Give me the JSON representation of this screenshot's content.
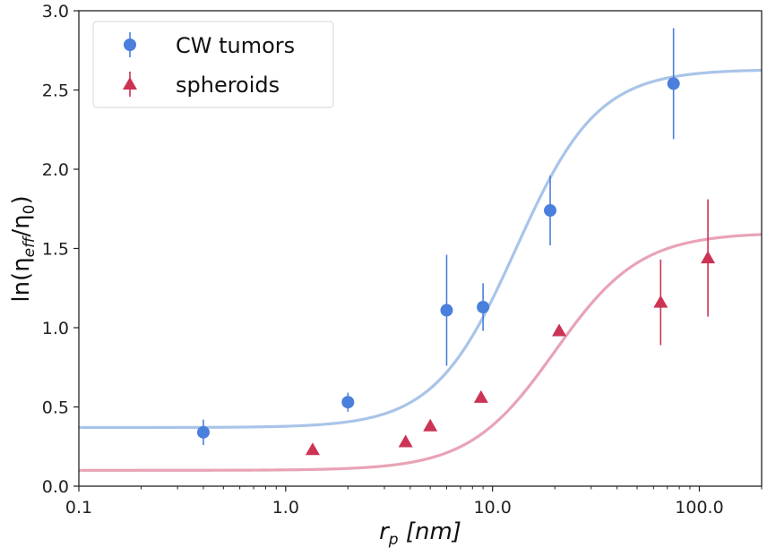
{
  "chart_data": {
    "type": "scatter",
    "x_scale": "log",
    "xlim": [
      0.1,
      200
    ],
    "ylim": [
      0.0,
      3.0
    ],
    "x_ticks": [
      0.1,
      1.0,
      10.0,
      100.0
    ],
    "x_tick_labels": [
      "0.1",
      "1.0",
      "10.0",
      "100.0"
    ],
    "y_ticks": [
      0.0,
      0.5,
      1.0,
      1.5,
      2.0,
      2.5,
      3.0
    ],
    "y_tick_labels": [
      "0.0",
      "0.5",
      "1.0",
      "1.5",
      "2.0",
      "2.5",
      "3.0"
    ],
    "xlabel": {
      "main": "r",
      "sub": "p",
      "rest": " [nm]"
    },
    "ylabel": {
      "part1": "ln(η",
      "sub": "eff",
      "part2": "/η",
      "sub2": "0",
      "part3": ")"
    },
    "grid": false,
    "legend_position": "top-left",
    "series": [
      {
        "name": "CW tumors",
        "marker": "circle",
        "color": "#4a7fdc",
        "fit_color": "#a9c4e8",
        "points": [
          {
            "x": 0.4,
            "y": 0.34,
            "err": 0.08
          },
          {
            "x": 2.0,
            "y": 0.53,
            "err": 0.06
          },
          {
            "x": 6.0,
            "y": 1.11,
            "err": 0.35
          },
          {
            "x": 9.0,
            "y": 1.13,
            "err": 0.15
          },
          {
            "x": 19.0,
            "y": 1.74,
            "err": 0.22
          },
          {
            "x": 75.0,
            "y": 2.54,
            "err": 0.35
          }
        ],
        "fit": {
          "y_min": 0.37,
          "y_max": 2.63,
          "x_half": 13.0,
          "slope": 2.2
        }
      },
      {
        "name": "spheroids",
        "marker": "triangle",
        "color": "#cc3355",
        "fit_color": "#e8a3b6",
        "points": [
          {
            "x": 1.35,
            "y": 0.23,
            "err": 0.0
          },
          {
            "x": 3.8,
            "y": 0.28,
            "err": 0.0
          },
          {
            "x": 5.0,
            "y": 0.38,
            "err": 0.0
          },
          {
            "x": 8.8,
            "y": 0.56,
            "err": 0.0
          },
          {
            "x": 21.0,
            "y": 0.98,
            "err": 0.0
          },
          {
            "x": 65.0,
            "y": 1.16,
            "err": 0.27
          },
          {
            "x": 110.0,
            "y": 1.44,
            "err": 0.37
          }
        ],
        "fit": {
          "y_min": 0.1,
          "y_max": 1.6,
          "x_half": 20.0,
          "slope": 2.1
        }
      }
    ]
  }
}
